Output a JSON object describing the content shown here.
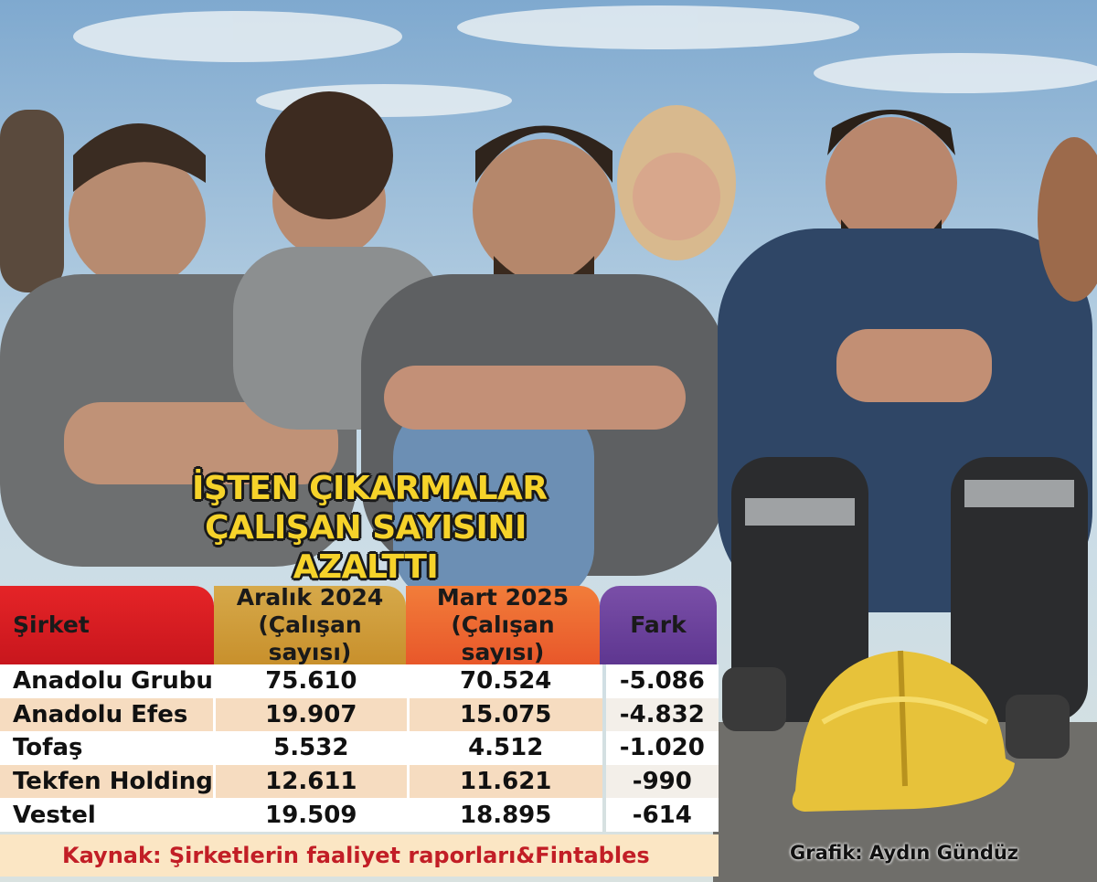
{
  "chart_data": {
    "type": "table",
    "title": [
      "İŞTEN ÇIKARMALAR",
      "ÇALIŞAN SAYISINI",
      "AZALTTI"
    ],
    "columns": {
      "company": "Şirket",
      "dec2024": [
        "Aralık 2024",
        "(Çalışan sayısı)"
      ],
      "mar2025": [
        "Mart 2025",
        "(Çalışan sayısı)"
      ],
      "diff": "Fark"
    },
    "rows": [
      {
        "company": "Anadolu Grubu",
        "dec2024": "75.610",
        "mar2025": "70.524",
        "diff": "-5.086"
      },
      {
        "company": "Anadolu Efes",
        "dec2024": "19.907",
        "mar2025": "15.075",
        "diff": "-4.832"
      },
      {
        "company": "Tofaş",
        "dec2024": "5.532",
        "mar2025": "4.512",
        "diff": "-1.020"
      },
      {
        "company": "Tekfen Holding",
        "dec2024": "12.611",
        "mar2025": "11.621",
        "diff": "-990"
      },
      {
        "company": "Vestel",
        "dec2024": "19.509",
        "mar2025": "18.895",
        "diff": "-614"
      }
    ],
    "source": "Kaynak: Şirketlerin faaliyet raporları&Fintables",
    "credit": "Grafik: Aydın Gündüz"
  },
  "colors": {
    "title": "#f6d32a",
    "header_company": "#e52427",
    "header_dec": "#d6a94a",
    "header_mar": "#f27d3a",
    "header_diff": "#6b43a0",
    "source_text": "#c21e26"
  }
}
